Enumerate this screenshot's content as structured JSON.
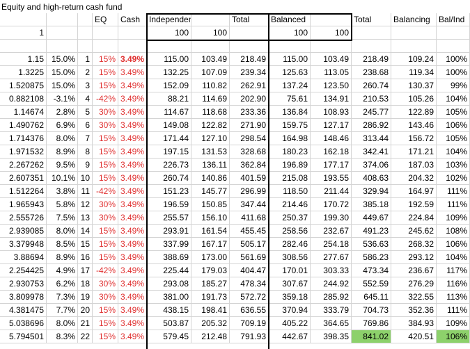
{
  "sheet": {
    "title": "Equity and high-return cash fund",
    "headers": [
      "",
      "",
      "EQ",
      "Cash",
      "Independent",
      "",
      "Total",
      "Balanced",
      "",
      "Total",
      "Balancing",
      "Bal/Ind"
    ],
    "row1": [
      "",
      "",
      "",
      "",
      "100",
      "100",
      "",
      "100",
      "100",
      "",
      "",
      ""
    ],
    "row2": [
      "1",
      "",
      "",
      "",
      "",
      "",
      "",
      "",
      "",
      "",
      "",
      ""
    ],
    "data": [
      [
        "1.15",
        "15.0%",
        "1",
        "15%",
        "3.49%",
        "115.00",
        "103.49",
        "218.49",
        "115.00",
        "103.49",
        "218.49",
        "109.24",
        "100%"
      ],
      [
        "1.3225",
        "15.0%",
        "2",
        "15%",
        "3.49%",
        "132.25",
        "107.09",
        "239.34",
        "125.63",
        "113.05",
        "238.68",
        "119.34",
        "100%"
      ],
      [
        "1.520875",
        "15.0%",
        "3",
        "15%",
        "3.49%",
        "152.09",
        "110.82",
        "262.91",
        "137.24",
        "123.50",
        "260.74",
        "130.37",
        "99%"
      ],
      [
        "0.882108",
        "-3.1%",
        "4",
        "-42%",
        "3.49%",
        "88.21",
        "114.69",
        "202.90",
        "75.61",
        "134.91",
        "210.53",
        "105.26",
        "104%"
      ],
      [
        "1.14674",
        "2.8%",
        "5",
        "30%",
        "3.49%",
        "114.67",
        "118.68",
        "233.36",
        "136.84",
        "108.93",
        "245.77",
        "122.89",
        "105%"
      ],
      [
        "1.490762",
        "6.9%",
        "6",
        "30%",
        "3.49%",
        "149.08",
        "122.82",
        "271.90",
        "159.75",
        "127.17",
        "286.92",
        "143.46",
        "106%"
      ],
      [
        "1.714376",
        "8.0%",
        "7",
        "15%",
        "3.49%",
        "171.44",
        "127.10",
        "298.54",
        "164.98",
        "148.46",
        "313.44",
        "156.72",
        "105%"
      ],
      [
        "1.971532",
        "8.9%",
        "8",
        "15%",
        "3.49%",
        "197.15",
        "131.53",
        "328.68",
        "180.23",
        "162.18",
        "342.41",
        "171.21",
        "104%"
      ],
      [
        "2.267262",
        "9.5%",
        "9",
        "15%",
        "3.49%",
        "226.73",
        "136.11",
        "362.84",
        "196.89",
        "177.17",
        "374.06",
        "187.03",
        "103%"
      ],
      [
        "2.607351",
        "10.1%",
        "10",
        "15%",
        "3.49%",
        "260.74",
        "140.86",
        "401.59",
        "215.08",
        "193.55",
        "408.63",
        "204.32",
        "102%"
      ],
      [
        "1.512264",
        "3.8%",
        "11",
        "-42%",
        "3.49%",
        "151.23",
        "145.77",
        "296.99",
        "118.50",
        "211.44",
        "329.94",
        "164.97",
        "111%"
      ],
      [
        "1.965943",
        "5.8%",
        "12",
        "30%",
        "3.49%",
        "196.59",
        "150.85",
        "347.44",
        "214.46",
        "170.72",
        "385.18",
        "192.59",
        "111%"
      ],
      [
        "2.555726",
        "7.5%",
        "13",
        "30%",
        "3.49%",
        "255.57",
        "156.10",
        "411.68",
        "250.37",
        "199.30",
        "449.67",
        "224.84",
        "109%"
      ],
      [
        "2.939085",
        "8.0%",
        "14",
        "15%",
        "3.49%",
        "293.91",
        "161.54",
        "455.45",
        "258.56",
        "232.67",
        "491.23",
        "245.62",
        "108%"
      ],
      [
        "3.379948",
        "8.5%",
        "15",
        "15%",
        "3.49%",
        "337.99",
        "167.17",
        "505.17",
        "282.46",
        "254.18",
        "536.63",
        "268.32",
        "106%"
      ],
      [
        "3.88694",
        "8.9%",
        "16",
        "15%",
        "3.49%",
        "388.69",
        "173.00",
        "561.69",
        "308.56",
        "277.67",
        "586.23",
        "293.12",
        "104%"
      ],
      [
        "2.254425",
        "4.9%",
        "17",
        "-42%",
        "3.49%",
        "225.44",
        "179.03",
        "404.47",
        "170.01",
        "303.33",
        "473.34",
        "236.67",
        "117%"
      ],
      [
        "2.930753",
        "6.2%",
        "18",
        "30%",
        "3.49%",
        "293.08",
        "185.27",
        "478.34",
        "307.67",
        "244.92",
        "552.59",
        "276.29",
        "116%"
      ],
      [
        "3.809978",
        "7.3%",
        "19",
        "30%",
        "3.49%",
        "381.00",
        "191.73",
        "572.72",
        "359.18",
        "285.92",
        "645.11",
        "322.55",
        "113%"
      ],
      [
        "4.381475",
        "7.7%",
        "20",
        "15%",
        "3.49%",
        "438.15",
        "198.41",
        "636.55",
        "370.94",
        "333.79",
        "704.73",
        "352.36",
        "111%"
      ],
      [
        "5.038696",
        "8.0%",
        "21",
        "15%",
        "3.49%",
        "503.87",
        "205.32",
        "709.19",
        "405.22",
        "364.65",
        "769.86",
        "384.93",
        "109%"
      ],
      [
        "5.794501",
        "8.3%",
        "22",
        "15%",
        "3.49%",
        "579.45",
        "212.48",
        "791.93",
        "442.67",
        "398.35",
        "841.02",
        "420.51",
        "106%"
      ]
    ]
  },
  "colors": {
    "red_text": "#e03030",
    "green_fill": "#8dd16b",
    "grid": "#d4d4d4"
  }
}
